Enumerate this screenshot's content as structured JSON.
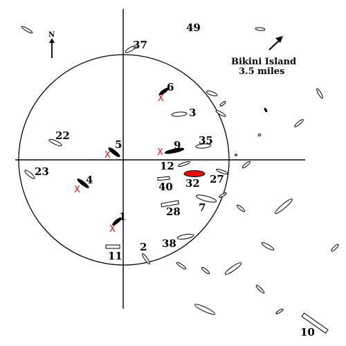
{
  "compass": {
    "letter": "N"
  },
  "note": {
    "line1": "Bikini Island",
    "line2": "3.5 miles"
  },
  "ship_labels": [
    "49",
    "37",
    "6",
    "3",
    "22",
    "5",
    "9",
    "35",
    "23",
    "12",
    "32",
    "27",
    "4",
    "40",
    "28",
    "7",
    "1",
    "38",
    "2",
    "11",
    "10"
  ],
  "x_mark": "X",
  "colors": {
    "target_ship": "#e01010",
    "ink": "#000000"
  }
}
